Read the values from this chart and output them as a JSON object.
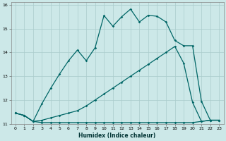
{
  "xlabel": "Humidex (Indice chaleur)",
  "bg_color": "#cce8e8",
  "grid_color": "#aacccc",
  "line_color": "#006666",
  "xlim": [
    -0.5,
    23.5
  ],
  "ylim": [
    11,
    16.1
  ],
  "yticks": [
    11,
    12,
    13,
    14,
    15,
    16
  ],
  "xticks": [
    0,
    1,
    2,
    3,
    4,
    5,
    6,
    7,
    8,
    9,
    10,
    11,
    12,
    13,
    14,
    15,
    16,
    17,
    18,
    19,
    20,
    21,
    22,
    23
  ],
  "line1_x": [
    0,
    1,
    2,
    3,
    4,
    5,
    6,
    7,
    8,
    9,
    10,
    11,
    12,
    13,
    14,
    15,
    16,
    17,
    18,
    19,
    20,
    21,
    22,
    23
  ],
  "line1_y": [
    11.45,
    11.35,
    11.1,
    11.05,
    11.05,
    11.05,
    11.05,
    11.05,
    11.05,
    11.05,
    11.05,
    11.05,
    11.05,
    11.05,
    11.05,
    11.05,
    11.05,
    11.05,
    11.05,
    11.05,
    11.05,
    11.1,
    11.15,
    11.15
  ],
  "line2_x": [
    0,
    1,
    2,
    3,
    4,
    5,
    6,
    7,
    8,
    9,
    10,
    11,
    12,
    13,
    14,
    15,
    16,
    17,
    18,
    19,
    20,
    21,
    22,
    23
  ],
  "line2_y": [
    11.45,
    11.35,
    11.1,
    11.15,
    11.25,
    11.35,
    11.45,
    11.55,
    11.75,
    12.0,
    12.25,
    12.5,
    12.75,
    13.0,
    13.25,
    13.5,
    13.75,
    14.0,
    14.25,
    13.55,
    11.9,
    11.1,
    11.15,
    11.15
  ],
  "line3_x": [
    0,
    1,
    2,
    3,
    4,
    5,
    6,
    7,
    8,
    9,
    10,
    11,
    12,
    13,
    14,
    15,
    16,
    17,
    18,
    19,
    20,
    21,
    22,
    23
  ],
  "line3_y": [
    11.45,
    11.35,
    11.1,
    11.85,
    12.5,
    13.1,
    13.65,
    14.1,
    13.65,
    14.2,
    15.55,
    15.1,
    15.5,
    15.82,
    15.28,
    15.56,
    15.52,
    15.28,
    14.5,
    14.28,
    14.28,
    11.95,
    11.15,
    11.15
  ],
  "markersize": 1.8,
  "linewidth": 0.9
}
